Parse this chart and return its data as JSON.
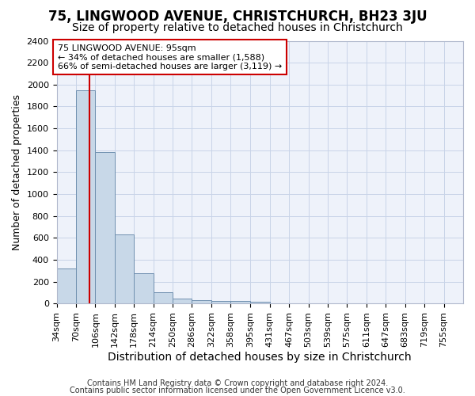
{
  "title": "75, LINGWOOD AVENUE, CHRISTCHURCH, BH23 3JU",
  "subtitle": "Size of property relative to detached houses in Christchurch",
  "xlabel": "Distribution of detached houses by size in Christchurch",
  "ylabel": "Number of detached properties",
  "footnote1": "Contains HM Land Registry data © Crown copyright and database right 2024.",
  "footnote2": "Contains public sector information licensed under the Open Government Licence v3.0.",
  "annotation_line1": "75 LINGWOOD AVENUE: 95sqm",
  "annotation_line2": "← 34% of detached houses are smaller (1,588)",
  "annotation_line3": "66% of semi-detached houses are larger (3,119) →",
  "bar_color": "#c8d8e8",
  "bar_edge_color": "#7090b0",
  "vline_x": 95,
  "vline_color": "#cc0000",
  "categories": [
    "34sqm",
    "70sqm",
    "106sqm",
    "142sqm",
    "178sqm",
    "214sqm",
    "250sqm",
    "286sqm",
    "322sqm",
    "358sqm",
    "395sqm",
    "431sqm",
    "467sqm",
    "503sqm",
    "539sqm",
    "575sqm",
    "611sqm",
    "647sqm",
    "683sqm",
    "719sqm",
    "755sqm"
  ],
  "bin_edges": [
    34,
    70,
    106,
    142,
    178,
    214,
    250,
    286,
    322,
    358,
    395,
    431,
    467,
    503,
    539,
    575,
    611,
    647,
    683,
    719,
    755
  ],
  "bin_width": 36,
  "values": [
    320,
    1950,
    1380,
    630,
    280,
    100,
    45,
    30,
    25,
    20,
    15,
    3,
    3,
    2,
    1,
    1,
    0,
    0,
    0,
    0,
    0
  ],
  "ylim": [
    0,
    2400
  ],
  "yticks": [
    0,
    200,
    400,
    600,
    800,
    1000,
    1200,
    1400,
    1600,
    1800,
    2000,
    2200,
    2400
  ],
  "grid_color": "#c8d4e8",
  "background_color": "#eef2fa",
  "title_fontsize": 12,
  "subtitle_fontsize": 10,
  "xlabel_fontsize": 10,
  "ylabel_fontsize": 9,
  "tick_fontsize": 8,
  "annotation_fontsize": 8,
  "footnote_fontsize": 7
}
